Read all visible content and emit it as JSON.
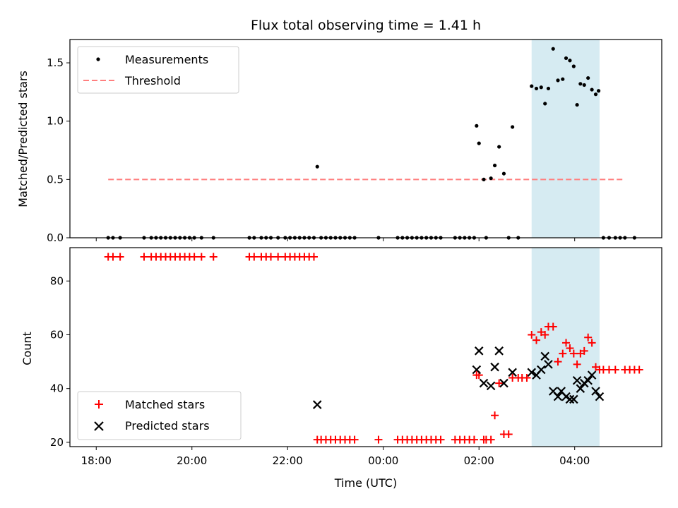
{
  "chart_data": {
    "type": "scatter",
    "title": "Flux total observing time = 1.41 h",
    "xlabel": "Time (UTC)",
    "x_unit": "hours since 18:00 UTC",
    "xlim": [
      -0.55,
      11.82
    ],
    "x_ticks": [
      0,
      2,
      4,
      6,
      8,
      10
    ],
    "x_tick_labels": [
      "18:00",
      "20:00",
      "22:00",
      "00:00",
      "02:00",
      "04:00"
    ],
    "highlight_span": {
      "x0": 9.1,
      "x1": 10.52
    },
    "colors": {
      "measurements": "#000000",
      "threshold": "#ff7f7f",
      "matched": "#ff0000",
      "predicted": "#000000",
      "span": "#add8e6"
    },
    "top": {
      "ylabel": "Matched/Predicted stars",
      "ylim": [
        0,
        1.7
      ],
      "y_ticks": [
        0.0,
        0.5,
        1.0,
        1.5
      ],
      "y_tick_labels": [
        "0.0",
        "0.5",
        "1.0",
        "1.5"
      ],
      "legend": {
        "measurements": "Measurements",
        "threshold": "Threshold"
      },
      "threshold": {
        "y": 0.5,
        "x0": 0.25,
        "x1": 11.0
      },
      "measurements": [
        [
          0.25,
          0
        ],
        [
          0.35,
          0
        ],
        [
          0.5,
          0
        ],
        [
          1.0,
          0
        ],
        [
          1.15,
          0
        ],
        [
          1.25,
          0
        ],
        [
          1.35,
          0
        ],
        [
          1.45,
          0
        ],
        [
          1.55,
          0
        ],
        [
          1.65,
          0
        ],
        [
          1.75,
          0
        ],
        [
          1.85,
          0
        ],
        [
          1.95,
          0
        ],
        [
          2.05,
          0
        ],
        [
          2.2,
          0
        ],
        [
          2.45,
          0
        ],
        [
          3.2,
          0
        ],
        [
          3.3,
          0
        ],
        [
          3.45,
          0
        ],
        [
          3.55,
          0
        ],
        [
          3.65,
          0
        ],
        [
          3.8,
          0
        ],
        [
          3.95,
          0
        ],
        [
          4.05,
          0
        ],
        [
          4.15,
          0
        ],
        [
          4.25,
          0
        ],
        [
          4.35,
          0
        ],
        [
          4.45,
          0
        ],
        [
          4.55,
          0
        ],
        [
          4.62,
          0.61
        ],
        [
          4.7,
          0
        ],
        [
          4.8,
          0
        ],
        [
          4.9,
          0
        ],
        [
          5.0,
          0
        ],
        [
          5.1,
          0
        ],
        [
          5.2,
          0
        ],
        [
          5.3,
          0
        ],
        [
          5.4,
          0
        ],
        [
          5.9,
          0
        ],
        [
          6.3,
          0
        ],
        [
          6.4,
          0
        ],
        [
          6.5,
          0
        ],
        [
          6.6,
          0
        ],
        [
          6.7,
          0
        ],
        [
          6.8,
          0
        ],
        [
          6.9,
          0
        ],
        [
          7.0,
          0
        ],
        [
          7.1,
          0
        ],
        [
          7.2,
          0
        ],
        [
          7.5,
          0
        ],
        [
          7.6,
          0
        ],
        [
          7.7,
          0
        ],
        [
          7.8,
          0
        ],
        [
          7.9,
          0
        ],
        [
          7.95,
          0.96
        ],
        [
          8.0,
          0.81
        ],
        [
          8.1,
          0.5
        ],
        [
          8.15,
          0
        ],
        [
          8.25,
          0.51
        ],
        [
          8.33,
          0.62
        ],
        [
          8.42,
          0.78
        ],
        [
          8.52,
          0.55
        ],
        [
          8.62,
          0
        ],
        [
          8.7,
          0.95
        ],
        [
          8.82,
          0
        ],
        [
          9.1,
          1.3
        ],
        [
          9.2,
          1.28
        ],
        [
          9.3,
          1.29
        ],
        [
          9.38,
          1.15
        ],
        [
          9.45,
          1.28
        ],
        [
          9.55,
          1.62
        ],
        [
          9.65,
          1.35
        ],
        [
          9.75,
          1.36
        ],
        [
          9.82,
          1.54
        ],
        [
          9.9,
          1.52
        ],
        [
          9.98,
          1.47
        ],
        [
          10.05,
          1.14
        ],
        [
          10.12,
          1.32
        ],
        [
          10.2,
          1.31
        ],
        [
          10.28,
          1.37
        ],
        [
          10.36,
          1.27
        ],
        [
          10.44,
          1.23
        ],
        [
          10.5,
          1.26
        ],
        [
          10.6,
          0
        ],
        [
          10.72,
          0
        ],
        [
          10.85,
          0
        ],
        [
          10.95,
          0
        ],
        [
          11.05,
          0
        ],
        [
          11.25,
          0
        ]
      ]
    },
    "bottom": {
      "ylabel": "Count",
      "ylim": [
        18.4,
        92.4
      ],
      "y_ticks": [
        20,
        40,
        60,
        80
      ],
      "y_tick_labels": [
        "20",
        "40",
        "60",
        "80"
      ],
      "legend": {
        "matched": "Matched stars",
        "predicted": "Predicted stars"
      },
      "matched": [
        [
          0.25,
          89
        ],
        [
          0.35,
          89
        ],
        [
          0.5,
          89
        ],
        [
          1.0,
          89
        ],
        [
          1.15,
          89
        ],
        [
          1.25,
          89
        ],
        [
          1.35,
          89
        ],
        [
          1.45,
          89
        ],
        [
          1.55,
          89
        ],
        [
          1.65,
          89
        ],
        [
          1.75,
          89
        ],
        [
          1.85,
          89
        ],
        [
          1.95,
          89
        ],
        [
          2.05,
          89
        ],
        [
          2.2,
          89
        ],
        [
          2.45,
          89
        ],
        [
          3.2,
          89
        ],
        [
          3.3,
          89
        ],
        [
          3.45,
          89
        ],
        [
          3.55,
          89
        ],
        [
          3.65,
          89
        ],
        [
          3.8,
          89
        ],
        [
          3.95,
          89
        ],
        [
          4.05,
          89
        ],
        [
          4.15,
          89
        ],
        [
          4.25,
          89
        ],
        [
          4.35,
          89
        ],
        [
          4.45,
          89
        ],
        [
          4.55,
          89
        ],
        [
          4.62,
          21
        ],
        [
          4.7,
          21
        ],
        [
          4.8,
          21
        ],
        [
          4.9,
          21
        ],
        [
          5.0,
          21
        ],
        [
          5.1,
          21
        ],
        [
          5.2,
          21
        ],
        [
          5.3,
          21
        ],
        [
          5.4,
          21
        ],
        [
          5.9,
          21
        ],
        [
          6.3,
          21
        ],
        [
          6.4,
          21
        ],
        [
          6.5,
          21
        ],
        [
          6.6,
          21
        ],
        [
          6.7,
          21
        ],
        [
          6.8,
          21
        ],
        [
          6.9,
          21
        ],
        [
          7.0,
          21
        ],
        [
          7.1,
          21
        ],
        [
          7.2,
          21
        ],
        [
          7.5,
          21
        ],
        [
          7.6,
          21
        ],
        [
          7.7,
          21
        ],
        [
          7.8,
          21
        ],
        [
          7.9,
          21
        ],
        [
          7.95,
          45
        ],
        [
          8.0,
          45
        ],
        [
          8.1,
          21
        ],
        [
          8.15,
          21
        ],
        [
          8.25,
          21
        ],
        [
          8.33,
          30
        ],
        [
          8.42,
          42
        ],
        [
          8.52,
          23
        ],
        [
          8.62,
          23
        ],
        [
          8.7,
          44
        ],
        [
          8.82,
          44
        ],
        [
          8.9,
          44
        ],
        [
          9.0,
          44
        ],
        [
          9.1,
          60
        ],
        [
          9.2,
          58
        ],
        [
          9.3,
          61
        ],
        [
          9.38,
          60
        ],
        [
          9.45,
          63
        ],
        [
          9.55,
          63
        ],
        [
          9.65,
          50
        ],
        [
          9.75,
          53
        ],
        [
          9.82,
          57
        ],
        [
          9.9,
          55
        ],
        [
          9.98,
          53
        ],
        [
          10.05,
          49
        ],
        [
          10.12,
          53
        ],
        [
          10.2,
          54
        ],
        [
          10.28,
          59
        ],
        [
          10.36,
          57
        ],
        [
          10.44,
          48
        ],
        [
          10.52,
          47
        ],
        [
          10.6,
          47
        ],
        [
          10.72,
          47
        ],
        [
          10.85,
          47
        ],
        [
          11.05,
          47
        ],
        [
          11.15,
          47
        ],
        [
          11.25,
          47
        ],
        [
          11.35,
          47
        ]
      ],
      "predicted": [
        [
          4.62,
          34
        ],
        [
          7.95,
          47
        ],
        [
          8.0,
          54
        ],
        [
          8.1,
          42
        ],
        [
          8.25,
          41
        ],
        [
          8.33,
          48
        ],
        [
          8.42,
          54
        ],
        [
          8.52,
          42
        ],
        [
          8.7,
          46
        ],
        [
          9.1,
          46
        ],
        [
          9.2,
          45
        ],
        [
          9.3,
          47
        ],
        [
          9.38,
          52
        ],
        [
          9.45,
          49
        ],
        [
          9.55,
          39
        ],
        [
          9.65,
          37
        ],
        [
          9.72,
          39
        ],
        [
          9.82,
          37
        ],
        [
          9.9,
          36
        ],
        [
          9.98,
          36
        ],
        [
          10.05,
          43
        ],
        [
          10.12,
          40
        ],
        [
          10.2,
          42
        ],
        [
          10.28,
          43
        ],
        [
          10.36,
          45
        ],
        [
          10.44,
          39
        ],
        [
          10.52,
          37
        ]
      ]
    }
  }
}
